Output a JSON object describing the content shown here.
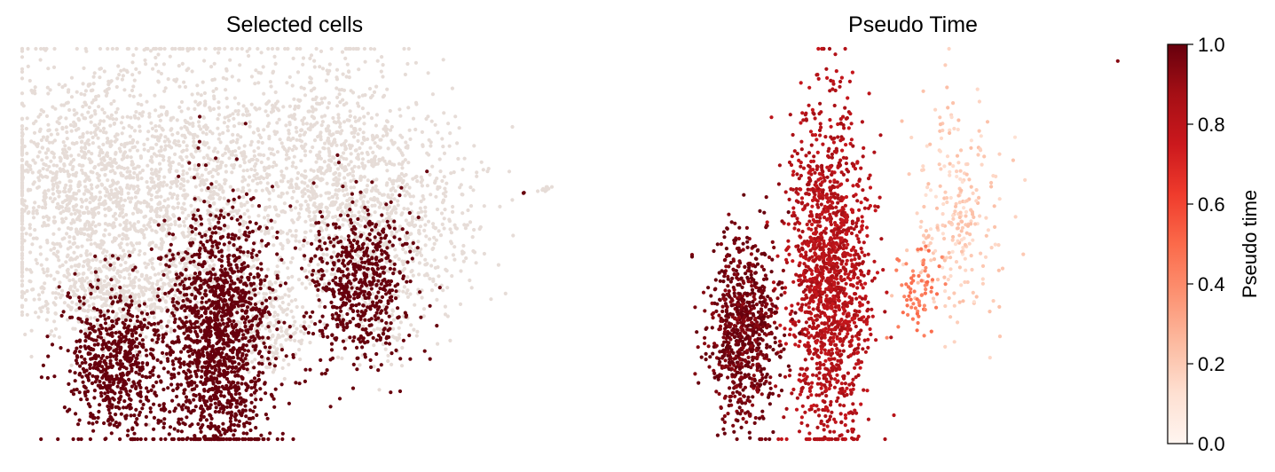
{
  "chart_data": [
    {
      "type": "scatter",
      "title": "Selected cells",
      "xlabel": "",
      "ylabel": "",
      "axes_visible": false,
      "legend": "none",
      "colors": {
        "background_cells": "#e6dcd7",
        "selected_cells": "#67000d"
      },
      "clusters": [
        {
          "group": "background",
          "cx": 0.1,
          "cy": 0.38,
          "sx": 0.08,
          "sy": 0.17,
          "n": 1100
        },
        {
          "group": "background",
          "cx": 0.3,
          "cy": 0.36,
          "sx": 0.09,
          "sy": 0.18,
          "n": 1100
        },
        {
          "group": "background",
          "cx": 0.56,
          "cy": 0.3,
          "sx": 0.09,
          "sy": 0.15,
          "n": 900
        },
        {
          "group": "background",
          "cx": 0.69,
          "cy": 0.45,
          "sx": 0.08,
          "sy": 0.12,
          "n": 500
        },
        {
          "group": "background",
          "cx": 0.2,
          "cy": 0.62,
          "sx": 0.08,
          "sy": 0.05,
          "n": 350
        },
        {
          "group": "background",
          "cx": 0.45,
          "cy": 0.7,
          "sx": 0.04,
          "sy": 0.07,
          "n": 250
        },
        {
          "group": "background",
          "cx": 0.66,
          "cy": 0.72,
          "sx": 0.04,
          "sy": 0.05,
          "n": 60
        },
        {
          "group": "background",
          "cx": 0.96,
          "cy": 0.36,
          "sx": 0.006,
          "sy": 0.003,
          "n": 12
        },
        {
          "group": "selected",
          "cx": 0.17,
          "cy": 0.81,
          "sx": 0.042,
          "sy": 0.1,
          "n": 650
        },
        {
          "group": "selected",
          "cx": 0.36,
          "cy": 0.74,
          "sx": 0.05,
          "sy": 0.16,
          "n": 1500
        },
        {
          "group": "selected",
          "cx": 0.62,
          "cy": 0.6,
          "sx": 0.045,
          "sy": 0.1,
          "n": 600
        },
        {
          "group": "selected",
          "cx": 0.92,
          "cy": 0.37,
          "sx": 0.002,
          "sy": 0.002,
          "n": 2
        }
      ]
    },
    {
      "type": "scatter",
      "title": "Pseudo Time",
      "xlabel": "",
      "ylabel": "",
      "axes_visible": false,
      "colorbar": {
        "label": "Pseudo time",
        "range": [
          0.0,
          1.0
        ],
        "ticks": [
          "0.0",
          "0.2",
          "0.4",
          "0.6",
          "0.8",
          "1.0"
        ],
        "colormap": "Reds"
      },
      "clusters": [
        {
          "cx": 0.12,
          "cy": 0.72,
          "sx": 0.04,
          "sy": 0.12,
          "n": 800,
          "pseudotime": 0.98
        },
        {
          "cx": 0.31,
          "cy": 0.58,
          "sx": 0.045,
          "sy": 0.21,
          "n": 1500,
          "pseudotime": 0.82
        },
        {
          "cx": 0.51,
          "cy": 0.62,
          "sx": 0.025,
          "sy": 0.06,
          "n": 70,
          "pseudotime": 0.45
        },
        {
          "cx": 0.6,
          "cy": 0.43,
          "sx": 0.05,
          "sy": 0.14,
          "n": 260,
          "pseudotime": 0.18
        },
        {
          "cx": 0.96,
          "cy": 0.03,
          "sx": 0.001,
          "sy": 0.001,
          "n": 1,
          "pseudotime": 0.9
        }
      ]
    }
  ]
}
